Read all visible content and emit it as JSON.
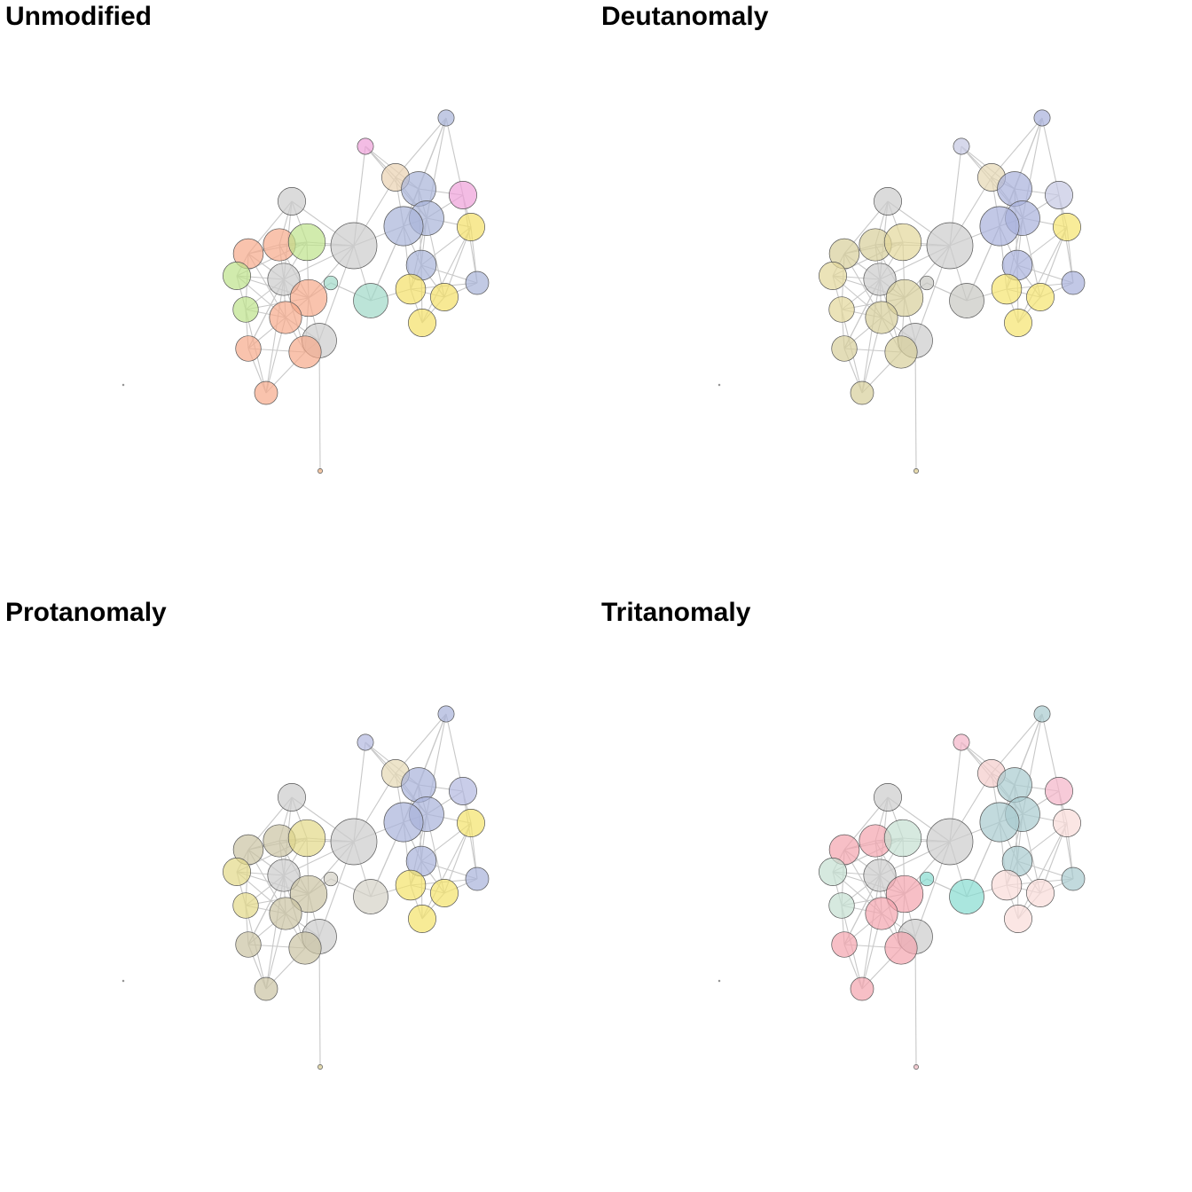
{
  "panels": [
    {
      "title": "Unmodified",
      "colors": {
        "salmon": "#f7a98a",
        "green": "#bde38a",
        "gray": "#cccccc",
        "teal": "#9fd8c8",
        "beige": "#e9d1b0",
        "blue": "#a8b4d8",
        "pink": "#ee9fd8",
        "yellow": "#f3e066",
        "orange": "#f0b080"
      }
    },
    {
      "title": "Deutanomaly",
      "colors": {
        "salmon": "#d7cf9a",
        "green": "#e2d79a",
        "gray": "#cccccc",
        "teal": "#c8c8c2",
        "beige": "#e6d7b2",
        "blue": "#a8b0dc",
        "pink": "#c4c8e2",
        "yellow": "#f5e46e",
        "orange": "#e0cf8e"
      }
    },
    {
      "title": "Protanomaly",
      "colors": {
        "salmon": "#cbc3a2",
        "green": "#e2d888",
        "gray": "#cccccc",
        "teal": "#d4d2c6",
        "beige": "#e6d8b4",
        "blue": "#a8b2da",
        "pink": "#b2b8e0",
        "yellow": "#f4e26a",
        "orange": "#dcce92"
      }
    },
    {
      "title": "Tritanomaly",
      "colors": {
        "salmon": "#f4a4ae",
        "green": "#c4e0d2",
        "gray": "#cccccc",
        "teal": "#86dcd0",
        "beige": "#f4ccca",
        "blue": "#a8cace",
        "pink": "#f4b4c8",
        "yellow": "#fadcd8",
        "orange": "#f0b8c0"
      }
    }
  ],
  "network": {
    "nodes": [
      {
        "id": 0,
        "c": "pink",
        "v": 0.35
      },
      {
        "id": 1,
        "c": "blue",
        "v": 0.35
      },
      {
        "id": 2,
        "c": "beige",
        "v": 0.6
      },
      {
        "id": 3,
        "c": "blue",
        "v": 0.75
      },
      {
        "id": 4,
        "c": "pink",
        "v": 0.6
      },
      {
        "id": 5,
        "c": "gray",
        "v": 0.6
      },
      {
        "id": 6,
        "c": "blue",
        "v": 0.75
      },
      {
        "id": 7,
        "c": "blue",
        "v": 0.85
      },
      {
        "id": 8,
        "c": "yellow",
        "v": 0.6
      },
      {
        "id": 9,
        "c": "salmon",
        "v": 0.65
      },
      {
        "id": 10,
        "c": "salmon",
        "v": 0.7
      },
      {
        "id": 11,
        "c": "green",
        "v": 0.8
      },
      {
        "id": 12,
        "c": "gray",
        "v": 1.0
      },
      {
        "id": 13,
        "c": "green",
        "v": 0.6
      },
      {
        "id": 14,
        "c": "gray",
        "v": 0.7
      },
      {
        "id": 15,
        "c": "teal",
        "v": 0.3
      },
      {
        "id": 16,
        "c": "salmon",
        "v": 0.8
      },
      {
        "id": 17,
        "c": "blue",
        "v": 0.65
      },
      {
        "id": 18,
        "c": "blue",
        "v": 0.5
      },
      {
        "id": 19,
        "c": "green",
        "v": 0.55
      },
      {
        "id": 20,
        "c": "teal",
        "v": 0.75
      },
      {
        "id": 21,
        "c": "yellow",
        "v": 0.65
      },
      {
        "id": 22,
        "c": "yellow",
        "v": 0.6
      },
      {
        "id": 23,
        "c": "salmon",
        "v": 0.7
      },
      {
        "id": 24,
        "c": "yellow",
        "v": 0.6
      },
      {
        "id": 25,
        "c": "gray",
        "v": 0.75
      },
      {
        "id": 26,
        "c": "salmon",
        "v": 0.55
      },
      {
        "id": 27,
        "c": "salmon",
        "v": 0.7
      },
      {
        "id": 28,
        "c": "salmon",
        "v": 0.5
      },
      {
        "id": 29,
        "c": "orange",
        "v": 0.1
      },
      {
        "id": 30,
        "c": "gray",
        "v": 0.02
      }
    ],
    "edges": [
      [
        1,
        3
      ],
      [
        1,
        7
      ],
      [
        1,
        4
      ],
      [
        1,
        6
      ],
      [
        1,
        2
      ],
      [
        0,
        2
      ],
      [
        0,
        12
      ],
      [
        0,
        3
      ],
      [
        0,
        6
      ],
      [
        2,
        3
      ],
      [
        2,
        7
      ],
      [
        2,
        6
      ],
      [
        2,
        12
      ],
      [
        3,
        6
      ],
      [
        3,
        4
      ],
      [
        3,
        7
      ],
      [
        3,
        17
      ],
      [
        4,
        8
      ],
      [
        4,
        18
      ],
      [
        4,
        6
      ],
      [
        6,
        7
      ],
      [
        6,
        8
      ],
      [
        6,
        17
      ],
      [
        6,
        21
      ],
      [
        6,
        22
      ],
      [
        7,
        12
      ],
      [
        7,
        17
      ],
      [
        7,
        21
      ],
      [
        7,
        20
      ],
      [
        8,
        17
      ],
      [
        8,
        22
      ],
      [
        8,
        18
      ],
      [
        8,
        24
      ],
      [
        17,
        18
      ],
      [
        17,
        21
      ],
      [
        17,
        22
      ],
      [
        17,
        24
      ],
      [
        18,
        22
      ],
      [
        18,
        21
      ],
      [
        21,
        22
      ],
      [
        21,
        24
      ],
      [
        22,
        24
      ],
      [
        21,
        20
      ],
      [
        20,
        12
      ],
      [
        20,
        7
      ],
      [
        20,
        15
      ],
      [
        12,
        11
      ],
      [
        12,
        14
      ],
      [
        12,
        10
      ],
      [
        12,
        16
      ],
      [
        12,
        5
      ],
      [
        12,
        25
      ],
      [
        15,
        16
      ],
      [
        15,
        20
      ],
      [
        5,
        10
      ],
      [
        5,
        11
      ],
      [
        5,
        9
      ],
      [
        5,
        14
      ],
      [
        9,
        10
      ],
      [
        9,
        11
      ],
      [
        9,
        13
      ],
      [
        9,
        14
      ],
      [
        9,
        19
      ],
      [
        9,
        23
      ],
      [
        10,
        11
      ],
      [
        10,
        14
      ],
      [
        10,
        16
      ],
      [
        11,
        14
      ],
      [
        11,
        16
      ],
      [
        11,
        13
      ],
      [
        13,
        14
      ],
      [
        13,
        19
      ],
      [
        13,
        16
      ],
      [
        13,
        23
      ],
      [
        14,
        16
      ],
      [
        14,
        19
      ],
      [
        14,
        23
      ],
      [
        14,
        27
      ],
      [
        14,
        26
      ],
      [
        16,
        23
      ],
      [
        16,
        25
      ],
      [
        16,
        27
      ],
      [
        16,
        19
      ],
      [
        19,
        23
      ],
      [
        19,
        26
      ],
      [
        19,
        28
      ],
      [
        23,
        25
      ],
      [
        23,
        27
      ],
      [
        23,
        26
      ],
      [
        23,
        28
      ],
      [
        25,
        27
      ],
      [
        25,
        29
      ],
      [
        26,
        27
      ],
      [
        26,
        28
      ],
      [
        27,
        28
      ],
      [
        28,
        14
      ],
      [
        26,
        14
      ]
    ]
  }
}
